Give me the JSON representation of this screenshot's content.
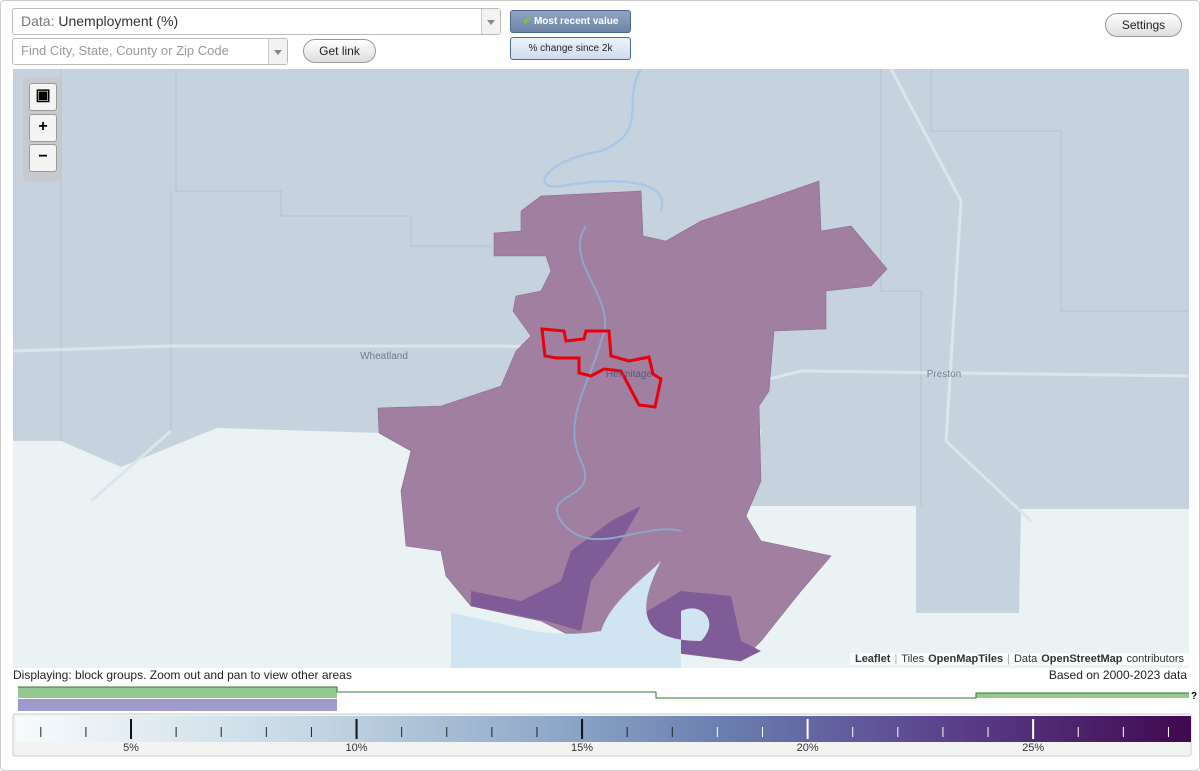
{
  "controls": {
    "data_label": "Data:",
    "data_value": "Unemployment (%)",
    "search_placeholder": "Find City, State, County or Zip Code",
    "get_link": "Get link",
    "mode_buttons": [
      "Most recent value",
      "% change since 2k"
    ],
    "settings": "Settings"
  },
  "map": {
    "place_labels": [
      "Wheatland",
      "Hermitage",
      "Preston"
    ],
    "attribution": [
      "Leaflet",
      "|",
      "Tiles",
      "OpenMapTiles",
      "|",
      "Data",
      "OpenStreetMap",
      "contributors"
    ]
  },
  "status": {
    "displaying": "Displaying: block groups. Zoom out and pan to view other areas",
    "based_on": "Based on 2000-2023 data"
  },
  "histogram": {
    "help": "?"
  },
  "legend": {
    "range": [
      2.45,
      28.5
    ],
    "ticks": [
      {
        "value": 5,
        "label": "5%"
      },
      {
        "value": 10,
        "label": "10%"
      },
      {
        "value": 15,
        "label": "15%"
      },
      {
        "value": 20,
        "label": "20%"
      },
      {
        "value": 25,
        "label": "25%"
      }
    ],
    "minor_ticks": [
      3,
      4,
      6,
      7,
      8,
      9,
      11,
      12,
      13,
      14,
      16,
      17,
      18,
      19,
      21,
      22,
      23,
      24,
      26,
      27,
      28
    ]
  }
}
